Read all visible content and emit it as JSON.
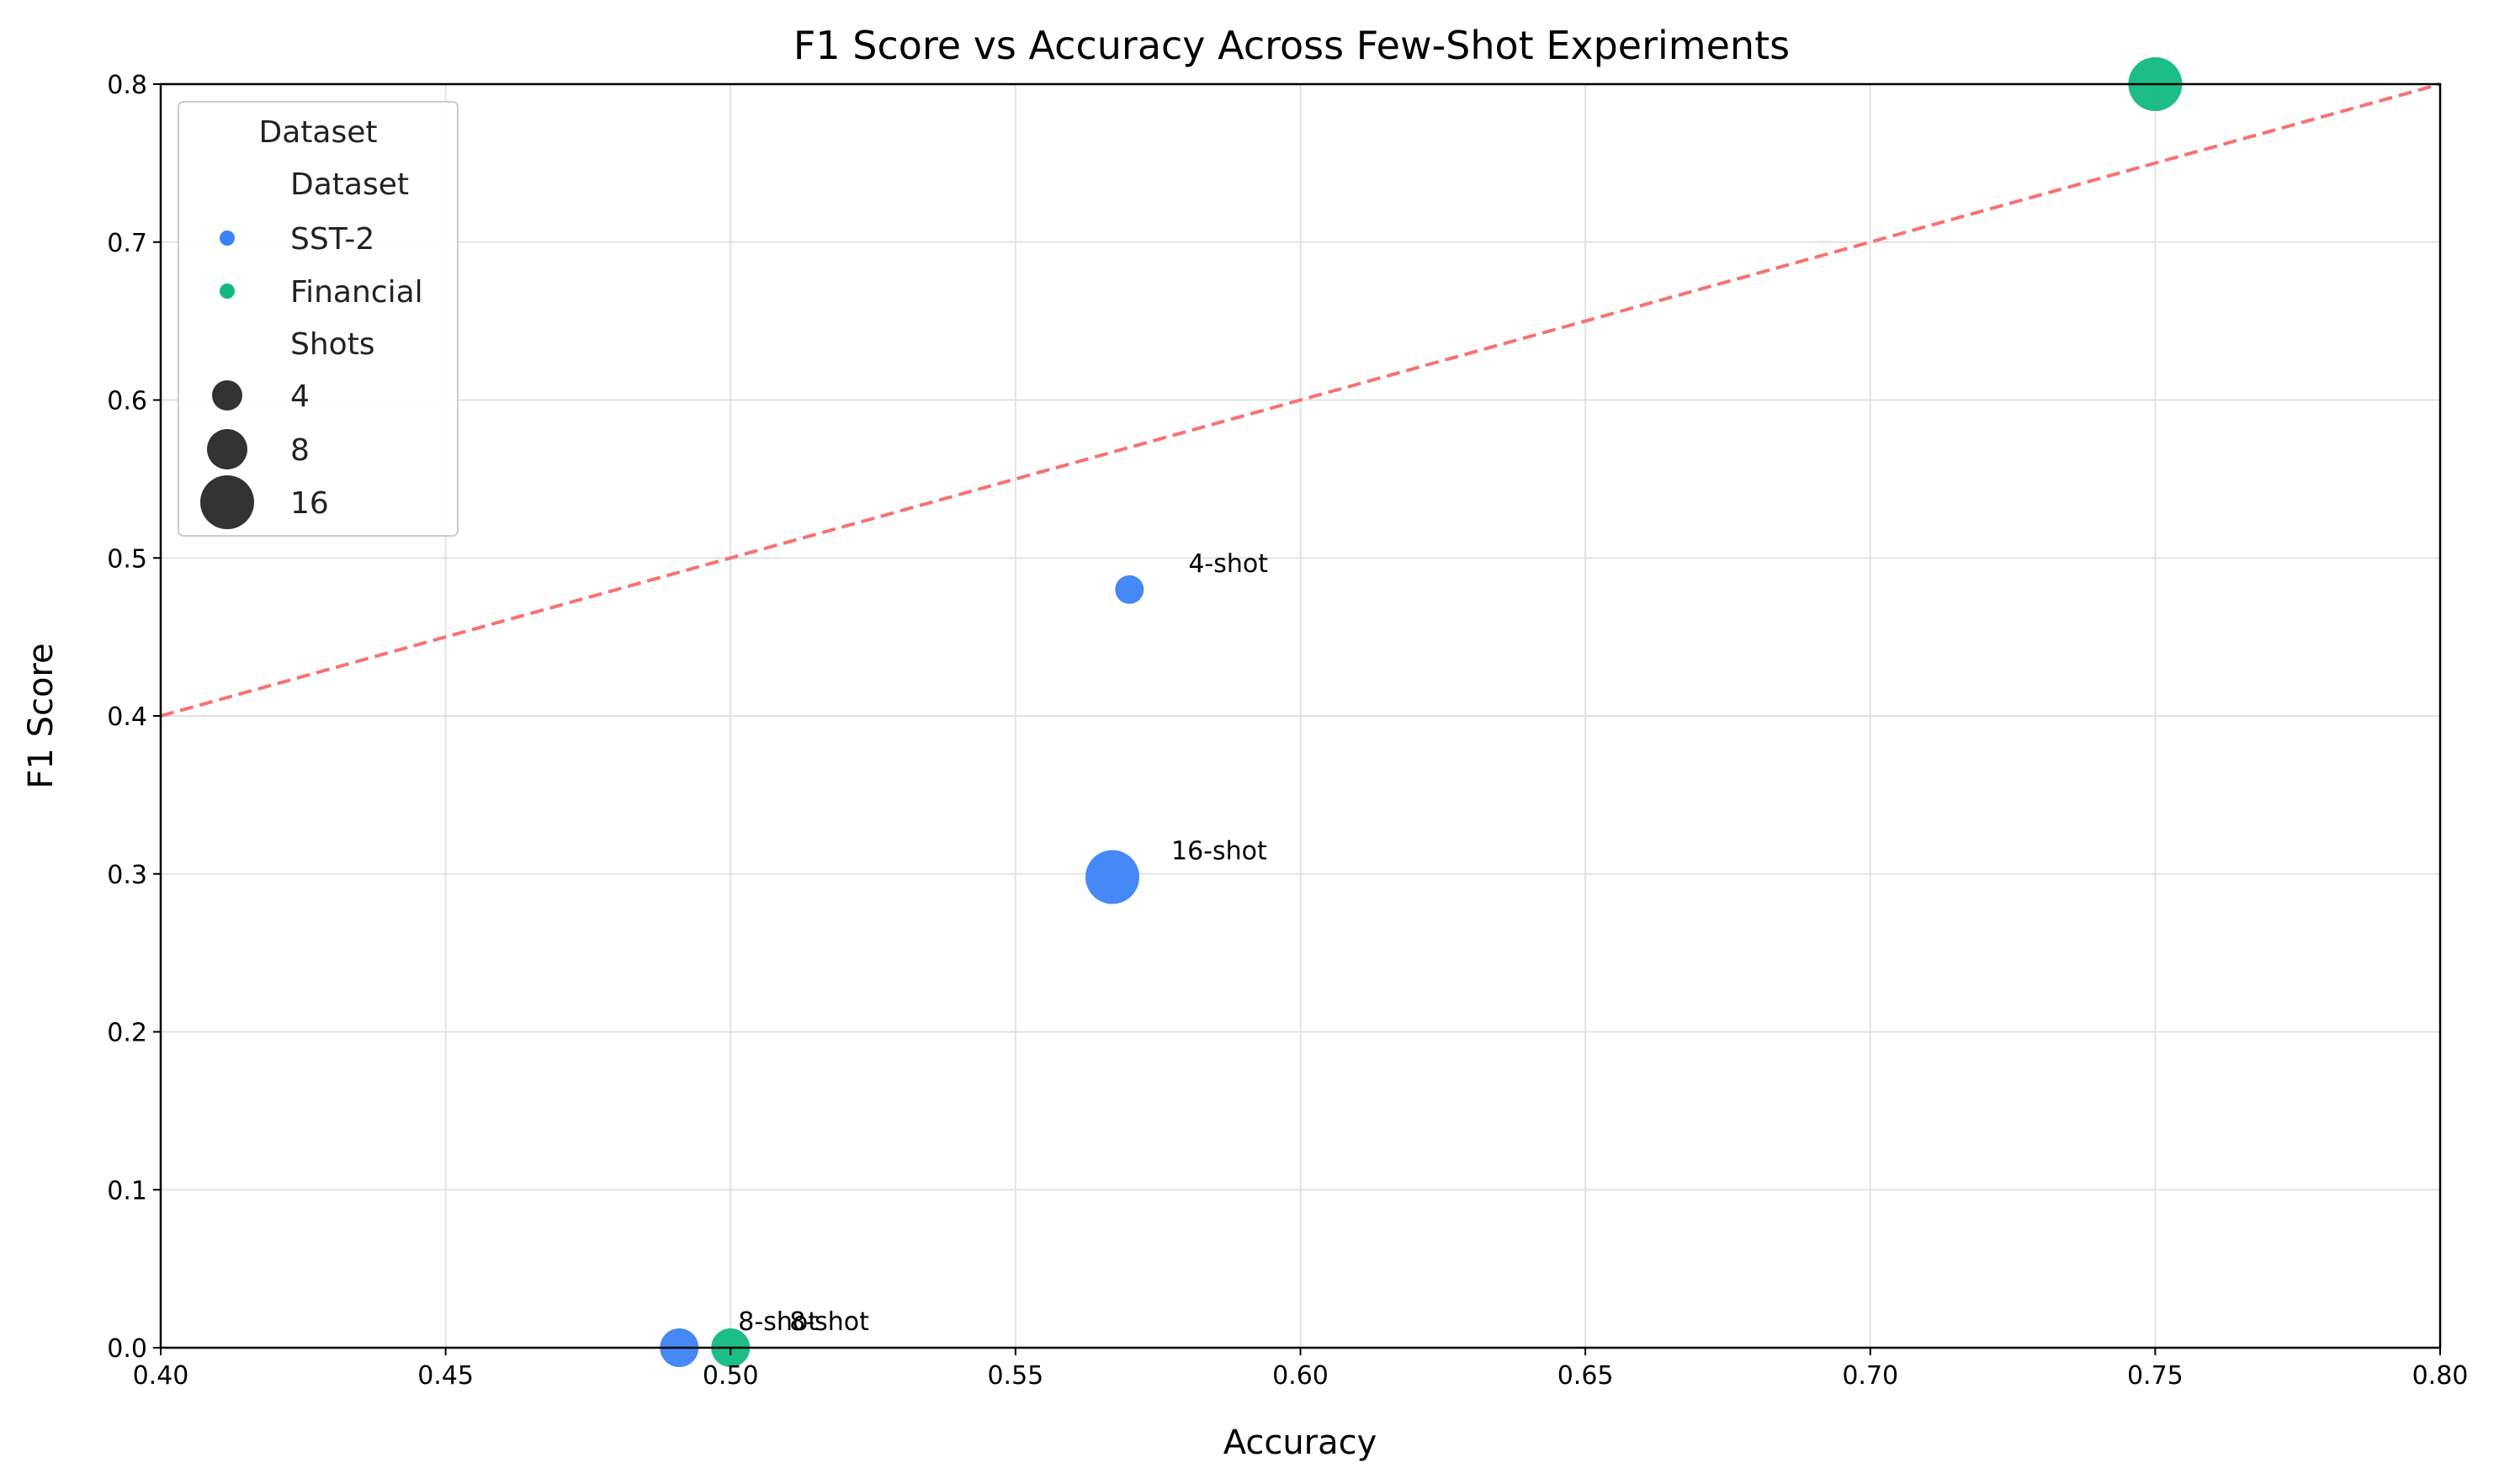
{
  "chart_data": {
    "type": "scatter",
    "title": "F1 Score vs Accuracy Across Few-Shot Experiments",
    "xlabel": "Accuracy",
    "ylabel": "F1 Score",
    "xlim": [
      0.4,
      0.8
    ],
    "ylim": [
      0.0,
      0.8
    ],
    "x_ticks": [
      "0.40",
      "0.45",
      "0.50",
      "0.55",
      "0.60",
      "0.65",
      "0.70",
      "0.75",
      "0.80"
    ],
    "y_ticks": [
      "0.0",
      "0.1",
      "0.2",
      "0.3",
      "0.4",
      "0.5",
      "0.6",
      "0.7",
      "0.8"
    ],
    "grid": true,
    "legend_position": "top-left",
    "legend": {
      "title": "Dataset",
      "hue_title": "Dataset",
      "size_title": "Shots",
      "datasets": [
        {
          "name": "SST-2",
          "color": "#3b82f6"
        },
        {
          "name": "Financial",
          "color": "#10b981"
        }
      ],
      "sizes": [
        "4",
        "8",
        "16"
      ]
    },
    "reference_line": {
      "x": [
        0.4,
        0.8
      ],
      "y": [
        0.4,
        0.8
      ],
      "color": "#f87171",
      "style": "dashed"
    },
    "series": [
      {
        "name": "SST-2",
        "color": "#3b82f6",
        "points": [
          {
            "x": 0.57,
            "y": 0.48,
            "shots": 4,
            "label": "4-shot"
          },
          {
            "x": 0.567,
            "y": 0.298,
            "shots": 16,
            "label": "16-shot"
          },
          {
            "x": 0.491,
            "y": 0.0,
            "shots": 8,
            "label": "8-shot"
          }
        ]
      },
      {
        "name": "Financial",
        "color": "#10b981",
        "points": [
          {
            "x": 0.5,
            "y": 0.0,
            "shots": 8,
            "label": "8-shot"
          },
          {
            "x": 0.75,
            "y": 0.8,
            "shots": 16,
            "label": ""
          }
        ]
      }
    ]
  }
}
